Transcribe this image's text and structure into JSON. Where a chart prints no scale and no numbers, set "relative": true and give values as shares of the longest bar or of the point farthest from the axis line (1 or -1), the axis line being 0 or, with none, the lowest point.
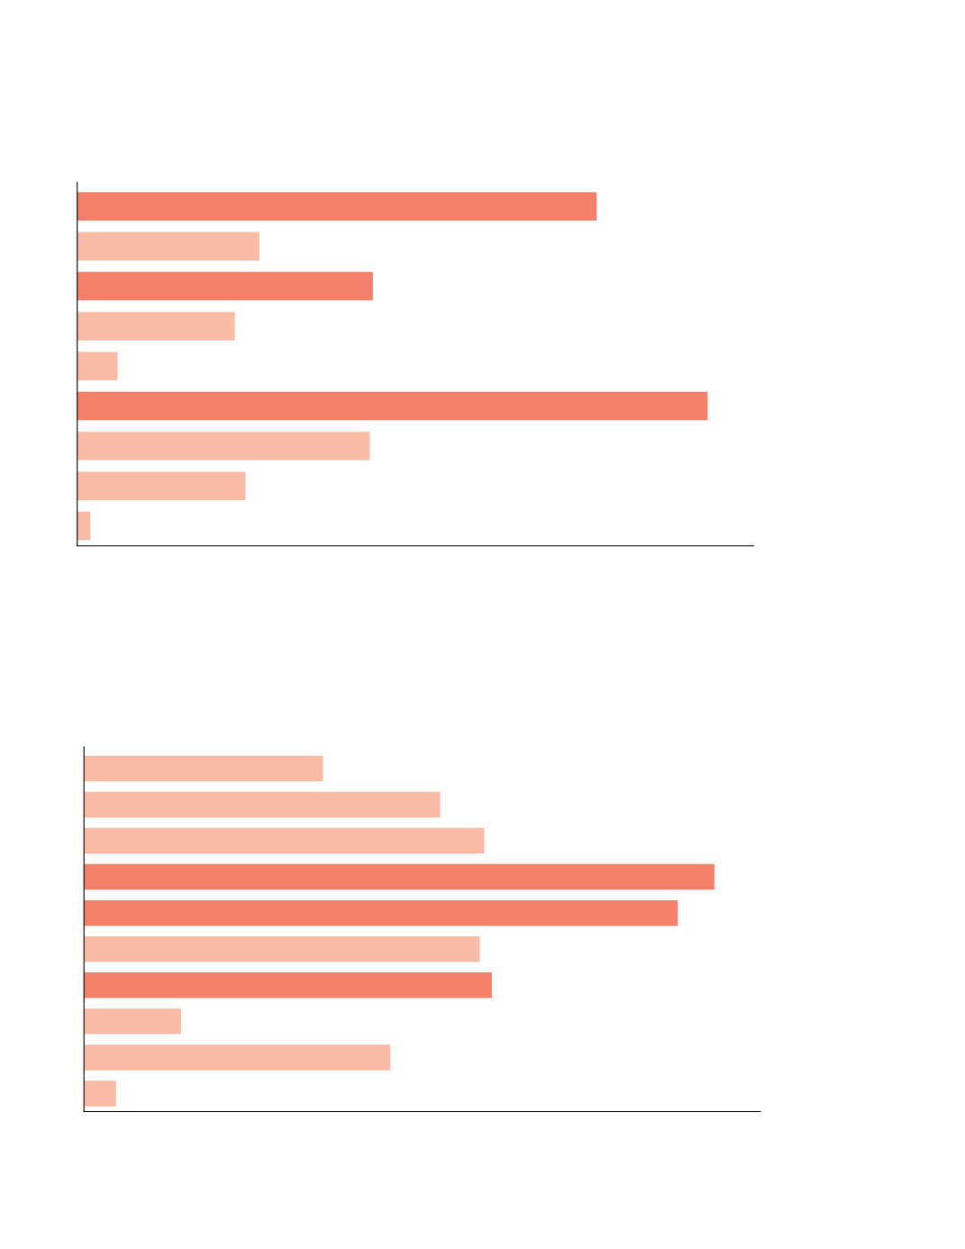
{
  "chart_data": [
    {
      "type": "bar",
      "orientation": "horizontal",
      "relative": true,
      "tick_labels": false,
      "grid": false,
      "legend": false,
      "categories": [
        null,
        null,
        null,
        null,
        null,
        null,
        null,
        null,
        null
      ],
      "values": [
        0.824,
        0.289,
        0.469,
        0.25,
        0.064,
        1,
        0.464,
        0.267,
        0.021
      ],
      "colors": [
        "#f4806a",
        "#fabba6",
        "#f4806a",
        "#fabba6",
        "#fabba6",
        "#f4806a",
        "#fabba6",
        "#fabba6",
        "#fabba6"
      ]
    },
    {
      "type": "bar",
      "orientation": "horizontal",
      "relative": true,
      "tick_labels": false,
      "grid": false,
      "legend": false,
      "categories": [
        null,
        null,
        null,
        null,
        null,
        null,
        null,
        null,
        null,
        null
      ],
      "values": [
        0.379,
        0.565,
        0.635,
        1,
        0.942,
        0.628,
        0.647,
        0.154,
        0.486,
        0.051
      ],
      "colors": [
        "#fabba6",
        "#fabba6",
        "#fabba6",
        "#f4806a",
        "#f4806a",
        "#fabba6",
        "#f4806a",
        "#fabba6",
        "#fabba6",
        "#fabba6"
      ]
    }
  ]
}
